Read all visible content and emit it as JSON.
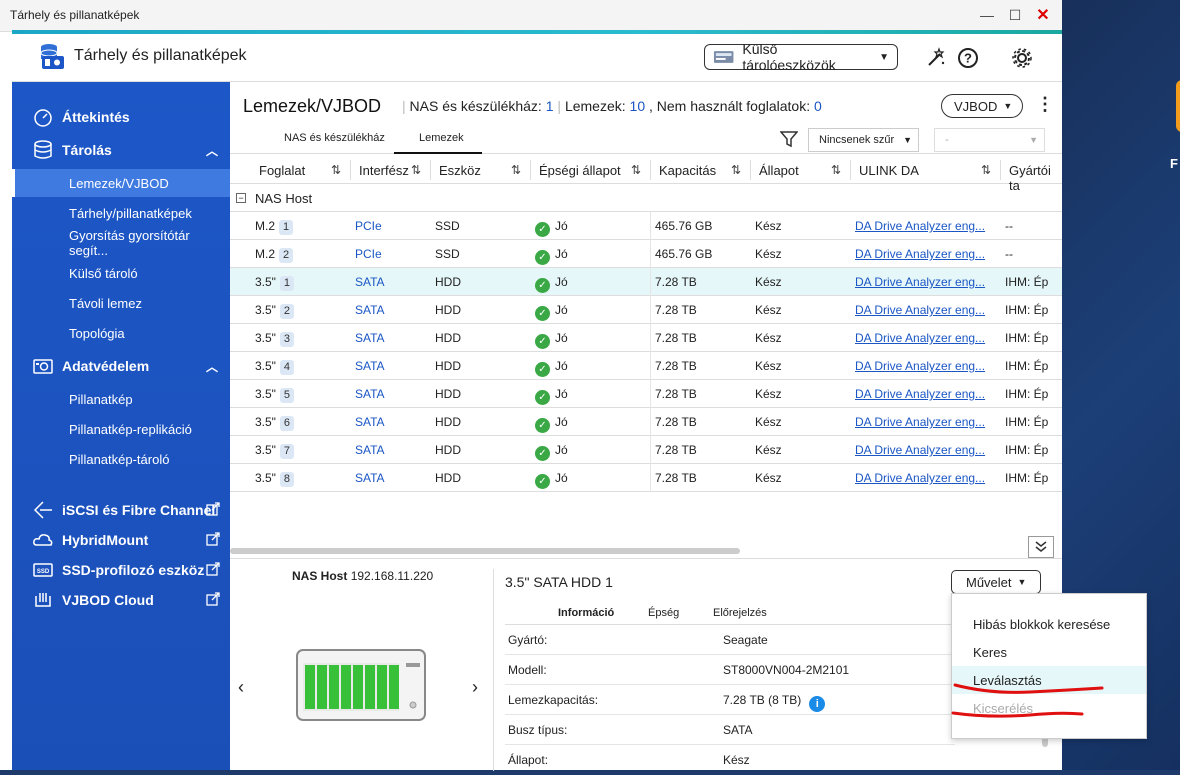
{
  "window": {
    "title": "Tárhely és pillanatképek",
    "minimize": "—",
    "maximize": "☐",
    "close": "✕"
  },
  "header": {
    "app_title": "Tárhely és pillanatképek",
    "external_devices": "Külső tárolóeszközök",
    "help_glyph": "?"
  },
  "sidebar": {
    "sections": [
      {
        "label": "Áttekintés"
      },
      {
        "label": "Tárolás",
        "items": [
          "Lemezek/VJBOD",
          "Tárhely/pillanatképek",
          "Gyorsítás gyorsítótár segít...",
          "Külső tároló",
          "Távoli lemez",
          "Topológia"
        ]
      },
      {
        "label": "Adatvédelem",
        "items": [
          "Pillanatkép",
          "Pillanatkép-replikáció",
          "Pillanatkép-tároló"
        ]
      },
      {
        "label": "iSCSI és Fibre Channel"
      },
      {
        "label": "HybridMount"
      },
      {
        "label": "SSD-profilozó eszköz"
      },
      {
        "label": "VJBOD Cloud"
      }
    ],
    "active_item": "Lemezek/VJBOD"
  },
  "main": {
    "title": "Lemezek/VJBOD",
    "summary": {
      "nas_label": "NAS és készülékház:",
      "nas_count": "1",
      "disks_label": "Lemezek:",
      "disks_count": "10",
      "unused_label": ", Nem használt foglalatok:",
      "unused_count": "0"
    },
    "vjbod_button": "VJBOD",
    "tabs": [
      "NAS és készülékház",
      "Lemezek"
    ],
    "active_tab": "Lemezek",
    "filter": "Nincsenek szűr",
    "filter2": "-",
    "columns": [
      "Foglalat",
      "Interfész",
      "Eszköz",
      "Épségi állapot",
      "Kapacitás",
      "Állapot",
      "ULINK DA",
      "Gyártói ta"
    ],
    "group": "NAS Host",
    "rows": [
      {
        "slot": "M.2",
        "num": "1",
        "iface": "PCIe",
        "device": "SSD",
        "health": "Jó",
        "cap": "465.76 GB",
        "status": "Kész",
        "ulink": "DA Drive Analyzer eng...",
        "vendor": "--"
      },
      {
        "slot": "M.2",
        "num": "2",
        "iface": "PCIe",
        "device": "SSD",
        "health": "Jó",
        "cap": "465.76 GB",
        "status": "Kész",
        "ulink": "DA Drive Analyzer eng...",
        "vendor": "--"
      },
      {
        "slot": "3.5\"",
        "num": "1",
        "iface": "SATA",
        "device": "HDD",
        "health": "Jó",
        "cap": "7.28 TB",
        "status": "Kész",
        "ulink": "DA Drive Analyzer eng...",
        "vendor": "IHM: Ép"
      },
      {
        "slot": "3.5\"",
        "num": "2",
        "iface": "SATA",
        "device": "HDD",
        "health": "Jó",
        "cap": "7.28 TB",
        "status": "Kész",
        "ulink": "DA Drive Analyzer eng...",
        "vendor": "IHM: Ép"
      },
      {
        "slot": "3.5\"",
        "num": "3",
        "iface": "SATA",
        "device": "HDD",
        "health": "Jó",
        "cap": "7.28 TB",
        "status": "Kész",
        "ulink": "DA Drive Analyzer eng...",
        "vendor": "IHM: Ép"
      },
      {
        "slot": "3.5\"",
        "num": "4",
        "iface": "SATA",
        "device": "HDD",
        "health": "Jó",
        "cap": "7.28 TB",
        "status": "Kész",
        "ulink": "DA Drive Analyzer eng...",
        "vendor": "IHM: Ép"
      },
      {
        "slot": "3.5\"",
        "num": "5",
        "iface": "SATA",
        "device": "HDD",
        "health": "Jó",
        "cap": "7.28 TB",
        "status": "Kész",
        "ulink": "DA Drive Analyzer eng...",
        "vendor": "IHM: Ép"
      },
      {
        "slot": "3.5\"",
        "num": "6",
        "iface": "SATA",
        "device": "HDD",
        "health": "Jó",
        "cap": "7.28 TB",
        "status": "Kész",
        "ulink": "DA Drive Analyzer eng...",
        "vendor": "IHM: Ép"
      },
      {
        "slot": "3.5\"",
        "num": "7",
        "iface": "SATA",
        "device": "HDD",
        "health": "Jó",
        "cap": "7.28 TB",
        "status": "Kész",
        "ulink": "DA Drive Analyzer eng...",
        "vendor": "IHM: Ép"
      },
      {
        "slot": "3.5\"",
        "num": "8",
        "iface": "SATA",
        "device": "HDD",
        "health": "Jó",
        "cap": "7.28 TB",
        "status": "Kész",
        "ulink": "DA Drive Analyzer eng...",
        "vendor": "IHM: Ép"
      }
    ]
  },
  "detail": {
    "host_name": "NAS Host",
    "host_ip": "192.168.11.220",
    "disk_title": "3.5\" SATA HDD 1",
    "action_button": "Művelet",
    "tabs": [
      "Információ",
      "Épség",
      "Előrejelzés"
    ],
    "active_tab": "Információ",
    "info": [
      {
        "key": "Gyártó:",
        "value": "Seagate"
      },
      {
        "key": "Modell:",
        "value": "ST8000VN004-2M2101"
      },
      {
        "key": "Lemezkapacitás:",
        "value": "7.28 TB (8 TB)"
      },
      {
        "key": "Busz típus:",
        "value": "SATA"
      },
      {
        "key": "Állapot:",
        "value": "Kész"
      }
    ],
    "info_glyph": "i"
  },
  "action_menu": {
    "items": [
      "Hibás blokkok keresése",
      "Keres",
      "Leválasztás",
      "Kicserélés"
    ],
    "hover": "Leválasztás",
    "disabled": "Kicserélés"
  },
  "desktop": {
    "icon_label": "F"
  },
  "colors": {
    "sidebar": "#1d57c7",
    "accent": "#1aa7c6",
    "link": "#1a56c4",
    "ok": "#39a845",
    "annotation": "#e01010"
  }
}
